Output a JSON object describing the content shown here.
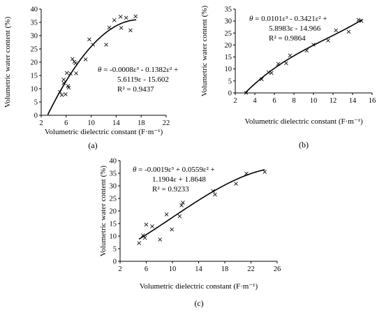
{
  "figure": {
    "panels": [
      {
        "label": "(a)"
      },
      {
        "label": "(b)"
      },
      {
        "label": "(c)"
      }
    ]
  },
  "chart_data": [
    {
      "type": "scatter",
      "panel": "(a)",
      "xlabel": "Volumetric dielectric constant (F·m⁻¹)",
      "ylabel": "Volumetric water content (%)",
      "xlim": [
        2,
        22
      ],
      "ylim": [
        0,
        40
      ],
      "xticks": [
        2,
        6,
        10,
        14,
        18,
        22
      ],
      "yticks": [
        0,
        5,
        10,
        15,
        20,
        25,
        30,
        35,
        40
      ],
      "marker": "×",
      "points": [
        [
          5.0,
          9.0
        ],
        [
          5.3,
          7.8
        ],
        [
          5.6,
          12.2
        ],
        [
          5.6,
          13.5
        ],
        [
          5.9,
          8.0
        ],
        [
          6.1,
          16.0
        ],
        [
          6.3,
          11.2
        ],
        [
          6.4,
          10.5
        ],
        [
          6.7,
          15.8
        ],
        [
          7.0,
          21.3
        ],
        [
          7.3,
          20.2
        ],
        [
          7.5,
          19.8
        ],
        [
          7.6,
          15.9
        ],
        [
          9.1,
          21.2
        ],
        [
          9.7,
          28.7
        ],
        [
          10.3,
          26.7
        ],
        [
          12.4,
          26.7
        ],
        [
          12.9,
          33.1
        ],
        [
          13.7,
          35.9
        ],
        [
          14.7,
          37.2
        ],
        [
          14.8,
          33.0
        ],
        [
          15.6,
          36.8
        ],
        [
          16.3,
          32.1
        ],
        [
          17.1,
          37.4
        ]
      ],
      "fit_coefficients": {
        "a3": -0.0008,
        "a2": -0.1382,
        "a1": 5.6119,
        "a0": -15.602
      },
      "fit_range": [
        3.05,
        17.2
      ],
      "equation_lines": [
        "= -0.0008ε³ - 0.1382ε² +",
        "5.6119ε - 15.602",
        "R² = 0.9437"
      ],
      "equation_symbol": "θ"
    },
    {
      "type": "scatter",
      "panel": "(b)",
      "xlabel": "Volumetric dielectric constant (F·m⁻¹)",
      "ylabel": "Volumetric water content (%)",
      "xlim": [
        2,
        16
      ],
      "ylim": [
        0,
        35
      ],
      "xticks": [
        2,
        4,
        6,
        8,
        10,
        12,
        14,
        16
      ],
      "yticks": [
        0,
        5,
        10,
        15,
        20,
        25,
        30,
        35
      ],
      "marker": "×",
      "points": [
        [
          3.1,
          0.1
        ],
        [
          4.7,
          5.8
        ],
        [
          5.4,
          8.8
        ],
        [
          5.7,
          8.5
        ],
        [
          6.4,
          12.2
        ],
        [
          7.2,
          12.6
        ],
        [
          7.6,
          15.8
        ],
        [
          9.3,
          17.8
        ],
        [
          10.0,
          20.3
        ],
        [
          11.5,
          22.0
        ],
        [
          12.3,
          26.3
        ],
        [
          13.6,
          25.6
        ],
        [
          14.6,
          30.6
        ],
        [
          14.9,
          30.2
        ]
      ],
      "fit_coefficients": {
        "a3": 0.0101,
        "a2": -0.3421,
        "a1": 5.8983,
        "a0": -14.966
      },
      "fit_range": [
        3.0,
        15.0
      ],
      "equation_lines": [
        "= 0.0101ε³ - 0.3421ε² +",
        "5.8983ε - 14.966",
        "R² = 0.9864"
      ],
      "equation_symbol": "θ"
    },
    {
      "type": "scatter",
      "panel": "(c)",
      "xlabel": "Volumetric dielectric constant  (F·m⁻¹)",
      "ylabel": "Volumetric water content (%)",
      "xlim": [
        2,
        26
      ],
      "ylim": [
        0,
        40
      ],
      "xticks": [
        2,
        6,
        10,
        14,
        18,
        22,
        26
      ],
      "yticks": [
        0,
        5,
        10,
        15,
        20,
        25,
        30,
        35,
        40
      ],
      "marker": "×",
      "points": [
        [
          4.9,
          7.3
        ],
        [
          5.5,
          10.4
        ],
        [
          5.8,
          9.5
        ],
        [
          6.0,
          14.7
        ],
        [
          6.9,
          14.0
        ],
        [
          8.1,
          8.7
        ],
        [
          9.1,
          18.8
        ],
        [
          9.9,
          12.8
        ],
        [
          11.1,
          18.1
        ],
        [
          11.4,
          22.4
        ],
        [
          11.6,
          23.5
        ],
        [
          16.2,
          28.0
        ],
        [
          16.5,
          26.7
        ],
        [
          19.7,
          31.0
        ],
        [
          21.3,
          35.0
        ],
        [
          24.1,
          35.7
        ]
      ],
      "fit_coefficients": {
        "a3": -0.0019,
        "a2": 0.0559,
        "a1": 1.1904,
        "a0": 1.8648
      },
      "fit_range": [
        4.9,
        24.1
      ],
      "equation_lines": [
        "= -0.0019ε³ + 0.0559ε² +",
        "1.1904ε + 1.8648",
        "R² = 0.9233"
      ],
      "equation_symbol": "θ"
    }
  ]
}
